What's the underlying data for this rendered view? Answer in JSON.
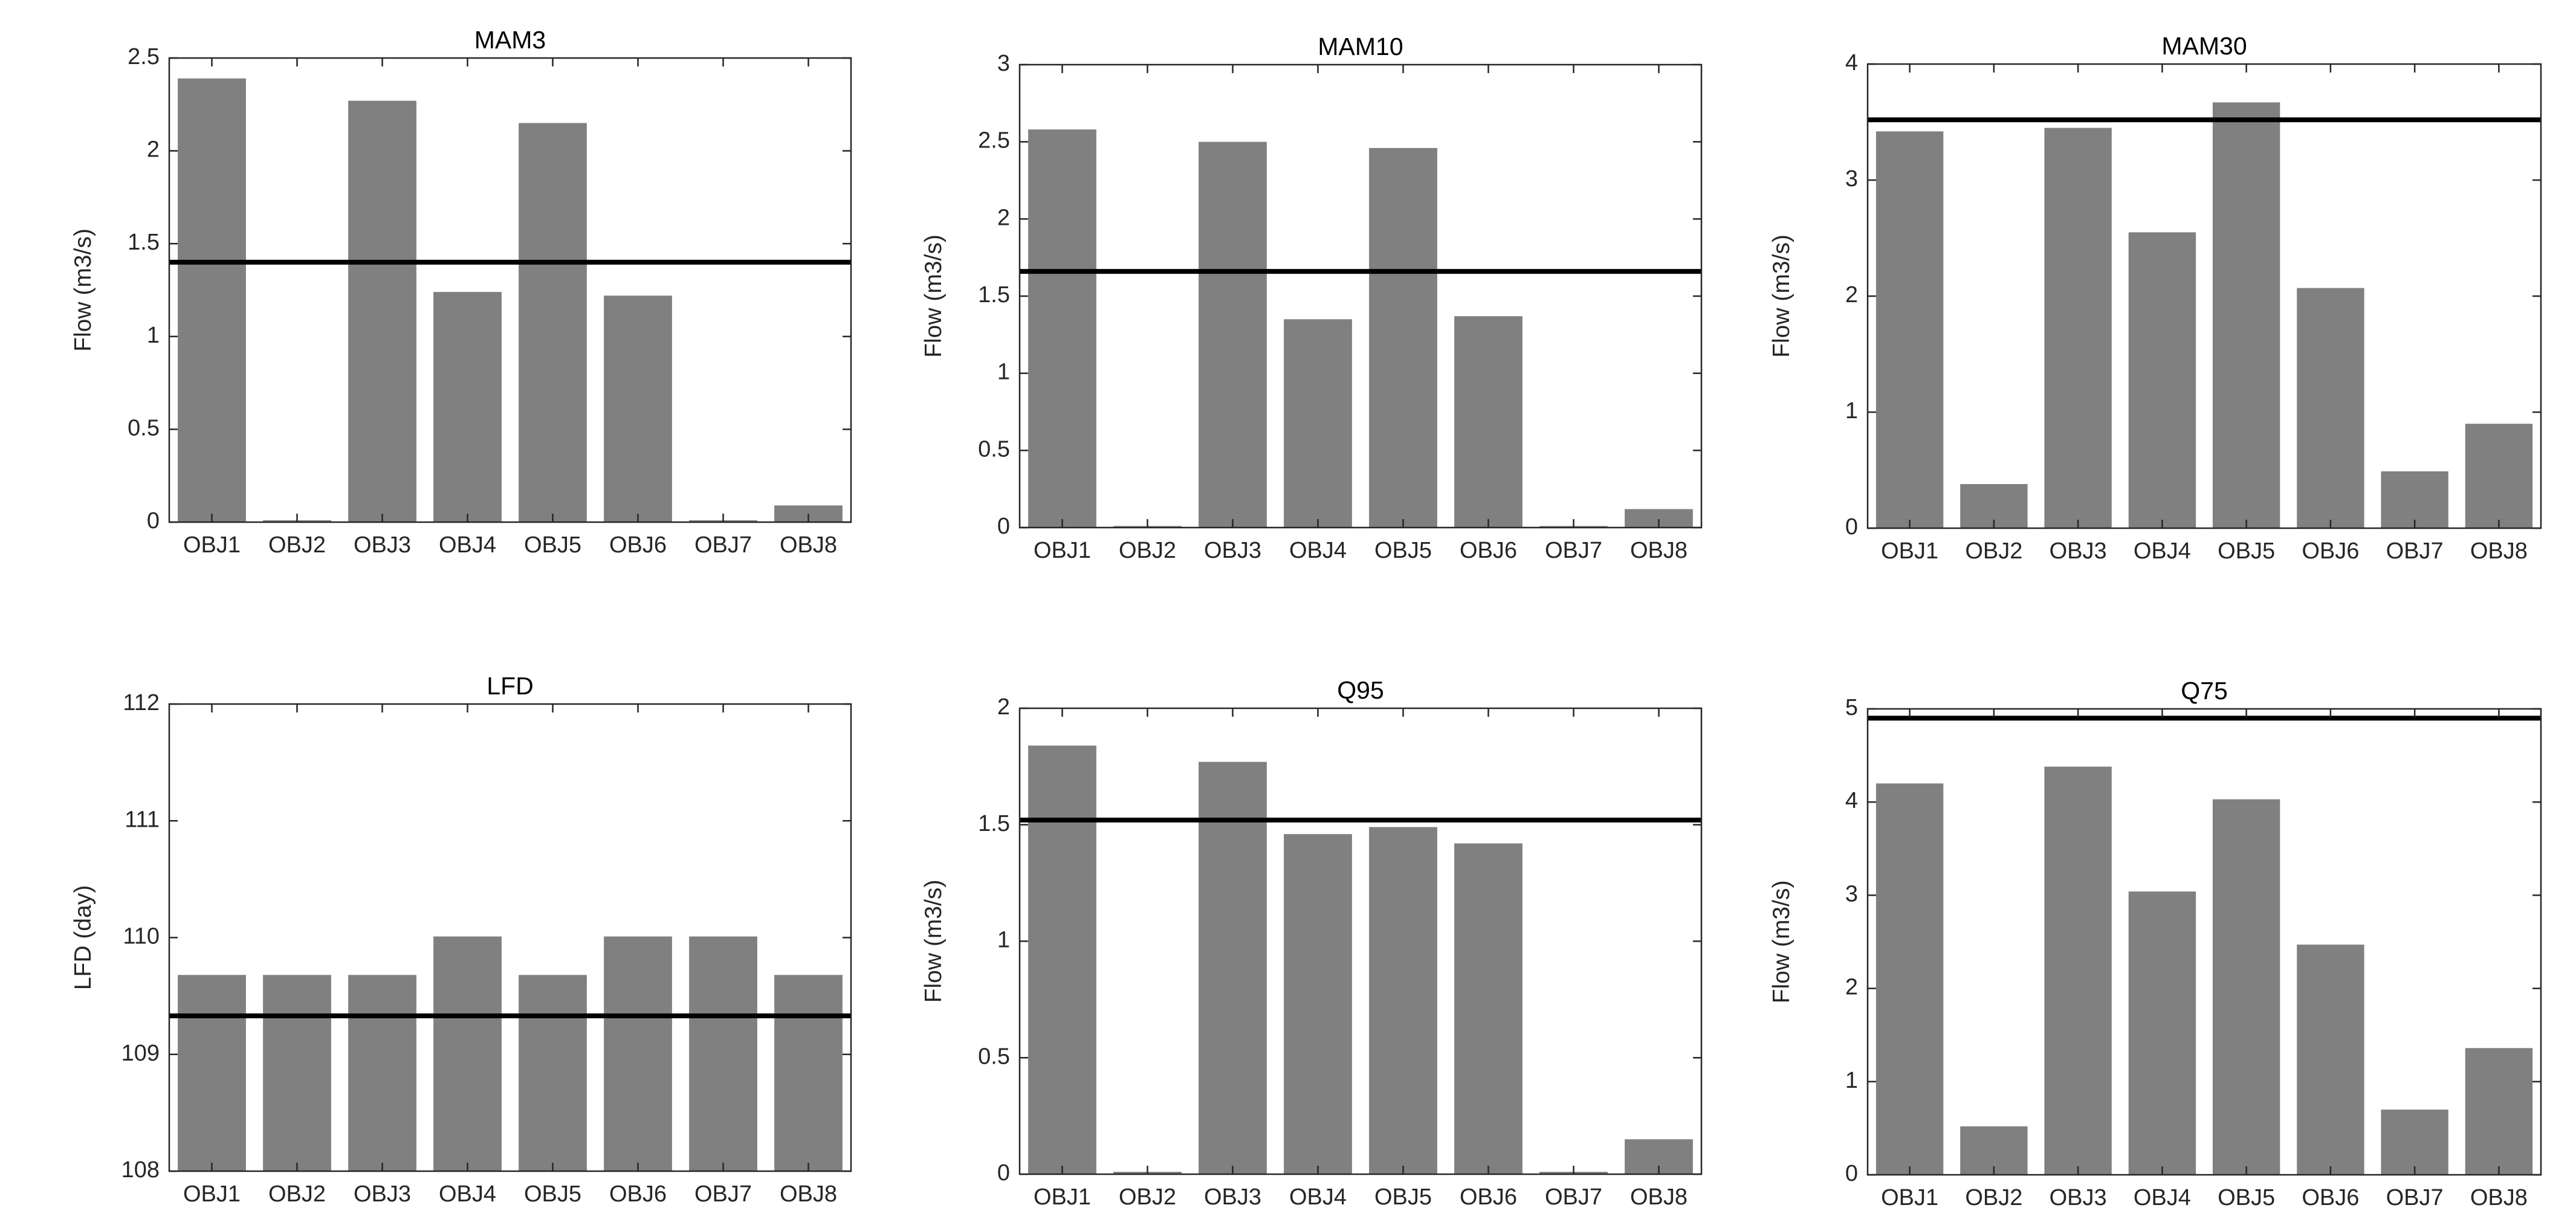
{
  "colors": {
    "bar": "#808080",
    "reference_line": "#000000",
    "axis": "#262626",
    "background": "#ffffff"
  },
  "chart_data": [
    {
      "type": "bar",
      "title": "MAM3",
      "ylabel": "Flow (m3/s)",
      "xlabel": "",
      "categories": [
        "OBJ1",
        "OBJ2",
        "OBJ3",
        "OBJ4",
        "OBJ5",
        "OBJ6",
        "OBJ7",
        "OBJ8"
      ],
      "values": [
        2.39,
        0.01,
        2.27,
        1.24,
        2.15,
        1.22,
        0.01,
        0.09
      ],
      "reference_line": 1.4,
      "ylim": [
        0,
        2.5
      ],
      "yticks": [
        0,
        0.5,
        1,
        1.5,
        2,
        2.5
      ],
      "ytick_labels": [
        "0",
        "0.5",
        "1",
        "1.5",
        "2",
        "2.5"
      ],
      "grid": false
    },
    {
      "type": "bar",
      "title": "MAM10",
      "ylabel": "Flow (m3/s)",
      "xlabel": "",
      "categories": [
        "OBJ1",
        "OBJ2",
        "OBJ3",
        "OBJ4",
        "OBJ5",
        "OBJ6",
        "OBJ7",
        "OBJ8"
      ],
      "values": [
        2.58,
        0.01,
        2.5,
        1.35,
        2.46,
        1.37,
        0.01,
        0.12
      ],
      "reference_line": 1.66,
      "ylim": [
        0,
        3
      ],
      "yticks": [
        0,
        0.5,
        1,
        1.5,
        2,
        2.5,
        3
      ],
      "ytick_labels": [
        "0",
        "0.5",
        "1",
        "1.5",
        "2",
        "2.5",
        "3"
      ],
      "grid": false
    },
    {
      "type": "bar",
      "title": "MAM30",
      "ylabel": "Flow (m3/s)",
      "xlabel": "",
      "categories": [
        "OBJ1",
        "OBJ2",
        "OBJ3",
        "OBJ4",
        "OBJ5",
        "OBJ6",
        "OBJ7",
        "OBJ8"
      ],
      "values": [
        3.42,
        0.38,
        3.45,
        2.55,
        3.67,
        2.07,
        0.49,
        0.9
      ],
      "reference_line": 3.52,
      "ylim": [
        0,
        4
      ],
      "yticks": [
        0,
        1,
        2,
        3,
        4
      ],
      "ytick_labels": [
        "0",
        "1",
        "2",
        "3",
        "4"
      ],
      "grid": false
    },
    {
      "type": "bar",
      "title": "LFD",
      "ylabel": "LFD (day)",
      "xlabel": "",
      "categories": [
        "OBJ1",
        "OBJ2",
        "OBJ3",
        "OBJ4",
        "OBJ5",
        "OBJ6",
        "OBJ7",
        "OBJ8"
      ],
      "values": [
        109.68,
        109.68,
        109.68,
        110.01,
        109.68,
        110.01,
        110.01,
        109.68
      ],
      "reference_line": 109.33,
      "ylim": [
        108,
        112
      ],
      "yticks": [
        108,
        109,
        110,
        111,
        112
      ],
      "ytick_labels": [
        "108",
        "109",
        "110",
        "111",
        "112"
      ],
      "grid": false
    },
    {
      "type": "bar",
      "title": "Q95",
      "ylabel": "Flow (m3/s)",
      "xlabel": "",
      "categories": [
        "OBJ1",
        "OBJ2",
        "OBJ3",
        "OBJ4",
        "OBJ5",
        "OBJ6",
        "OBJ7",
        "OBJ8"
      ],
      "values": [
        1.84,
        0.01,
        1.77,
        1.46,
        1.49,
        1.42,
        0.01,
        0.15
      ],
      "reference_line": 1.52,
      "ylim": [
        0,
        2
      ],
      "yticks": [
        0,
        0.5,
        1,
        1.5,
        2
      ],
      "ytick_labels": [
        "0",
        "0.5",
        "1",
        "1.5",
        "2"
      ],
      "grid": false
    },
    {
      "type": "bar",
      "title": "Q75",
      "ylabel": "Flow (m3/s)",
      "xlabel": "",
      "categories": [
        "OBJ1",
        "OBJ2",
        "OBJ3",
        "OBJ4",
        "OBJ5",
        "OBJ6",
        "OBJ7",
        "OBJ8"
      ],
      "values": [
        4.2,
        0.52,
        4.38,
        3.04,
        4.03,
        2.47,
        0.7,
        1.36
      ],
      "reference_line": 4.9,
      "ylim": [
        0,
        5
      ],
      "yticks": [
        0,
        1,
        2,
        3,
        4,
        5
      ],
      "ytick_labels": [
        "0",
        "1",
        "2",
        "3",
        "4",
        "5"
      ],
      "grid": false
    }
  ]
}
